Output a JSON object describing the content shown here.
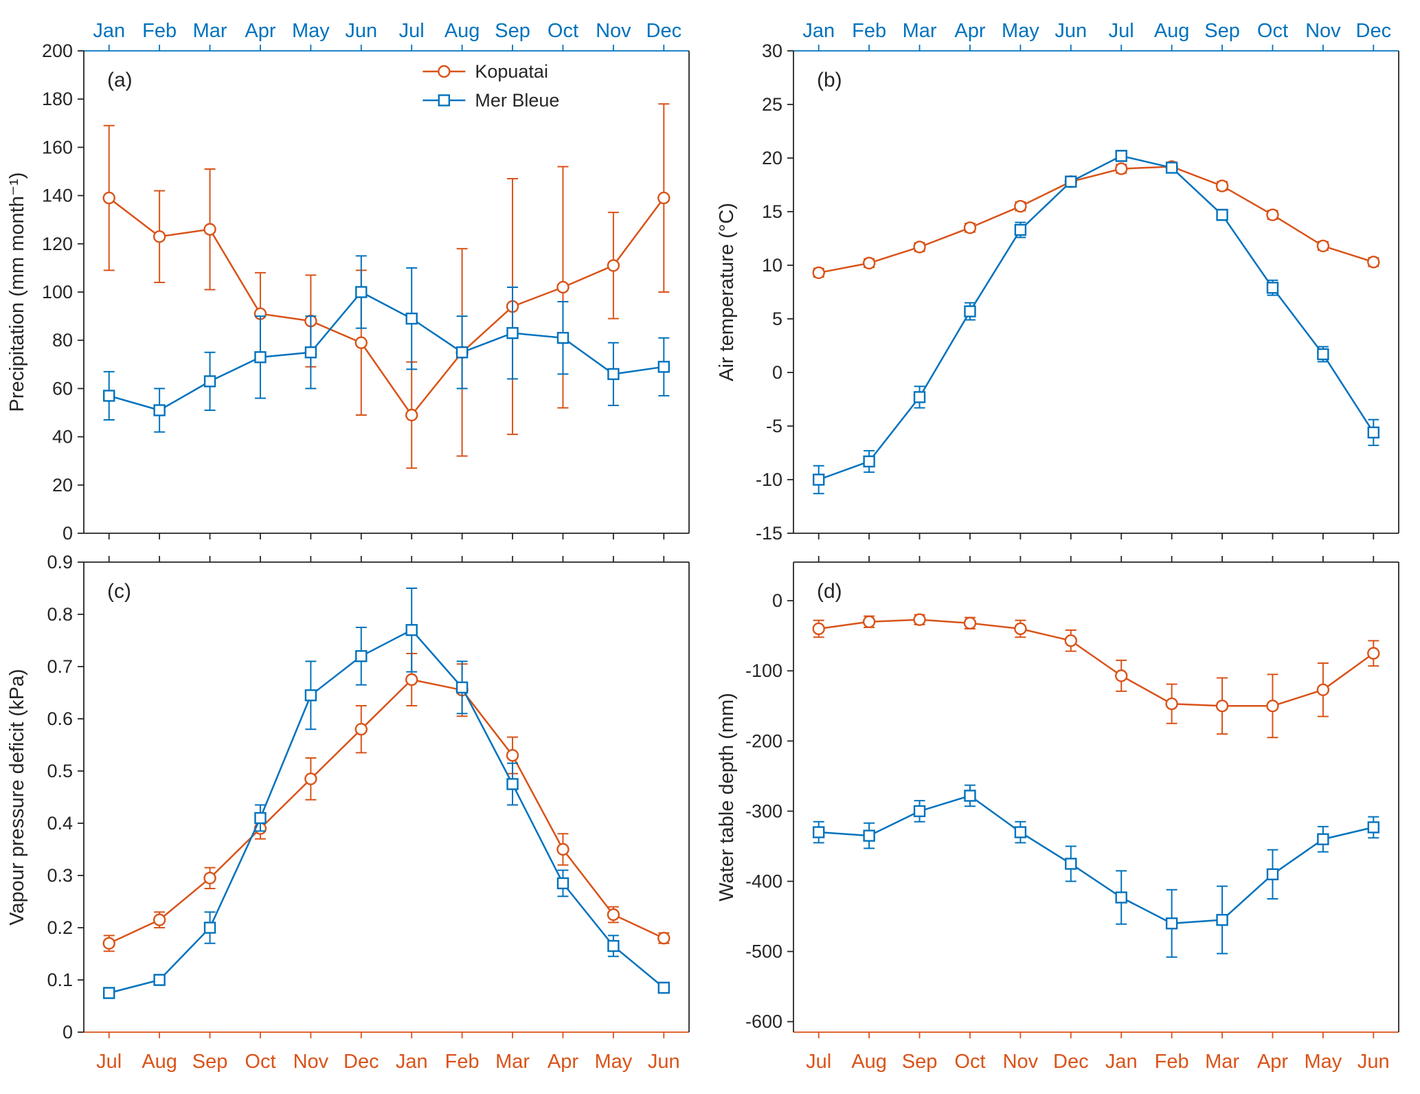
{
  "colors": {
    "kopuatai": "#d95319",
    "mer_bleue": "#0072bd",
    "axis_top": "#0072bd",
    "axis_bottom": "#d95319",
    "spine": "#262626",
    "text": "#262626"
  },
  "chart_data": [
    {
      "id": "a",
      "type": "line",
      "panel_label": "(a)",
      "ylabel": "Precipitation (mm month⁻¹)",
      "ylim": [
        0,
        200
      ],
      "yticks": [
        0,
        20,
        40,
        60,
        80,
        100,
        120,
        140,
        160,
        180,
        200
      ],
      "ytick_labels": [
        "0",
        "20",
        "40",
        "60",
        "80",
        "100",
        "120",
        "140",
        "160",
        "180",
        "200"
      ],
      "x_top": [
        "Jan",
        "Feb",
        "Mar",
        "Apr",
        "May",
        "Jun",
        "Jul",
        "Aug",
        "Sep",
        "Oct",
        "Nov",
        "Dec"
      ],
      "x_bottom": [
        "Jul",
        "Aug",
        "Sep",
        "Oct",
        "Nov",
        "Dec",
        "Jan",
        "Feb",
        "Mar",
        "Apr",
        "May",
        "Jun"
      ],
      "show_top_labels": true,
      "show_bottom_labels": false,
      "top_axis_colored": true,
      "bottom_axis_colored": false,
      "legend": true,
      "series": [
        {
          "name": "Kopuatai",
          "color": "#d95319",
          "marker": "circle",
          "values": [
            139,
            123,
            126,
            91,
            88,
            79,
            49,
            75,
            94,
            102,
            111,
            139
          ],
          "errors": [
            30,
            19,
            25,
            17,
            19,
            30,
            22,
            43,
            53,
            50,
            22,
            39
          ]
        },
        {
          "name": "Mer Bleue",
          "color": "#0072bd",
          "marker": "square",
          "values": [
            57,
            51,
            63,
            73,
            75,
            100,
            89,
            75,
            83,
            81,
            66,
            69
          ],
          "errors": [
            10,
            9,
            12,
            17,
            15,
            15,
            21,
            15,
            19,
            15,
            13,
            12
          ]
        }
      ]
    },
    {
      "id": "b",
      "type": "line",
      "panel_label": "(b)",
      "ylabel": "Air temperature (°C)",
      "ylim": [
        -15,
        30
      ],
      "yticks": [
        -15,
        -10,
        -5,
        0,
        5,
        10,
        15,
        20,
        25,
        30
      ],
      "ytick_labels": [
        "-15",
        "-10",
        "-5",
        "0",
        "5",
        "10",
        "15",
        "20",
        "25",
        "30"
      ],
      "x_top": [
        "Jan",
        "Feb",
        "Mar",
        "Apr",
        "May",
        "Jun",
        "Jul",
        "Aug",
        "Sep",
        "Oct",
        "Nov",
        "Dec"
      ],
      "x_bottom": [
        "Jul",
        "Aug",
        "Sep",
        "Oct",
        "Nov",
        "Dec",
        "Jan",
        "Feb",
        "Mar",
        "Apr",
        "May",
        "Jun"
      ],
      "show_top_labels": true,
      "show_bottom_labels": false,
      "top_axis_colored": true,
      "bottom_axis_colored": false,
      "legend": false,
      "series": [
        {
          "name": "Kopuatai",
          "color": "#d95319",
          "marker": "circle",
          "values": [
            9.3,
            10.2,
            11.7,
            13.5,
            15.5,
            17.8,
            19.0,
            19.2,
            17.4,
            14.7,
            11.8,
            10.3
          ],
          "errors": [
            0.4,
            0.4,
            0.4,
            0.4,
            0.4,
            0.4,
            0.4,
            0.4,
            0.4,
            0.4,
            0.4,
            0.4
          ]
        },
        {
          "name": "Mer Bleue",
          "color": "#0072bd",
          "marker": "square",
          "values": [
            -10.0,
            -8.3,
            -2.3,
            5.7,
            13.3,
            17.8,
            20.2,
            19.1,
            14.7,
            7.9,
            1.7,
            -5.6
          ],
          "errors": [
            1.3,
            1.0,
            1.0,
            0.8,
            0.7,
            0.5,
            0.5,
            0.4,
            0.5,
            0.7,
            0.7,
            1.2
          ]
        }
      ]
    },
    {
      "id": "c",
      "type": "line",
      "panel_label": "(c)",
      "ylabel": "Vapour pressure deficit (kPa)",
      "ylim": [
        0,
        0.9
      ],
      "yticks": [
        0,
        0.1,
        0.2,
        0.3,
        0.4,
        0.5,
        0.6,
        0.7,
        0.8,
        0.9
      ],
      "ytick_labels": [
        "0",
        "0.1",
        "0.2",
        "0.3",
        "0.4",
        "0.5",
        "0.6",
        "0.7",
        "0.8",
        "0.9"
      ],
      "x_top": [
        "Jan",
        "Feb",
        "Mar",
        "Apr",
        "May",
        "Jun",
        "Jul",
        "Aug",
        "Sep",
        "Oct",
        "Nov",
        "Dec"
      ],
      "x_bottom": [
        "Jul",
        "Aug",
        "Sep",
        "Oct",
        "Nov",
        "Dec",
        "Jan",
        "Feb",
        "Mar",
        "Apr",
        "May",
        "Jun"
      ],
      "show_top_labels": false,
      "show_bottom_labels": true,
      "top_axis_colored": false,
      "bottom_axis_colored": true,
      "legend": false,
      "series": [
        {
          "name": "Kopuatai",
          "color": "#d95319",
          "marker": "circle",
          "values": [
            0.17,
            0.215,
            0.295,
            0.39,
            0.485,
            0.58,
            0.675,
            0.655,
            0.53,
            0.35,
            0.225,
            0.18
          ],
          "errors": [
            0.015,
            0.015,
            0.02,
            0.02,
            0.04,
            0.045,
            0.05,
            0.05,
            0.035,
            0.03,
            0.015,
            0.01
          ]
        },
        {
          "name": "Mer Bleue",
          "color": "#0072bd",
          "marker": "square",
          "values": [
            0.075,
            0.1,
            0.2,
            0.41,
            0.645,
            0.72,
            0.77,
            0.66,
            0.475,
            0.285,
            0.165,
            0.085
          ],
          "errors": [
            0.01,
            0.01,
            0.03,
            0.025,
            0.065,
            0.055,
            0.08,
            0.05,
            0.04,
            0.025,
            0.02,
            0.01
          ]
        }
      ]
    },
    {
      "id": "d",
      "type": "line",
      "panel_label": "(d)",
      "ylabel": "Water table depth (mm)",
      "ylim": [
        -615,
        55
      ],
      "yticks": [
        0,
        -100,
        -200,
        -300,
        -400,
        -500,
        -600
      ],
      "ytick_labels": [
        "0",
        "-100",
        "-200",
        "-300",
        "-400",
        "-500",
        "-600"
      ],
      "x_top": [
        "Jan",
        "Feb",
        "Mar",
        "Apr",
        "May",
        "Jun",
        "Jul",
        "Aug",
        "Sep",
        "Oct",
        "Nov",
        "Dec"
      ],
      "x_bottom": [
        "Jul",
        "Aug",
        "Sep",
        "Oct",
        "Nov",
        "Dec",
        "Jan",
        "Feb",
        "Mar",
        "Apr",
        "May",
        "Jun"
      ],
      "show_top_labels": false,
      "show_bottom_labels": true,
      "top_axis_colored": false,
      "bottom_axis_colored": true,
      "legend": false,
      "series": [
        {
          "name": "Kopuatai",
          "color": "#d95319",
          "marker": "circle",
          "values": [
            -40,
            -30,
            -27,
            -32,
            -40,
            -57,
            -107,
            -147,
            -150,
            -150,
            -127,
            -75
          ],
          "errors": [
            12,
            8,
            7,
            8,
            12,
            15,
            22,
            28,
            40,
            45,
            38,
            18
          ]
        },
        {
          "name": "Mer Bleue",
          "color": "#0072bd",
          "marker": "square",
          "values": [
            -330,
            -335,
            -300,
            -278,
            -330,
            -375,
            -423,
            -460,
            -455,
            -390,
            -340,
            -323
          ],
          "errors": [
            15,
            18,
            15,
            15,
            15,
            25,
            38,
            48,
            48,
            35,
            18,
            15
          ]
        }
      ]
    }
  ]
}
